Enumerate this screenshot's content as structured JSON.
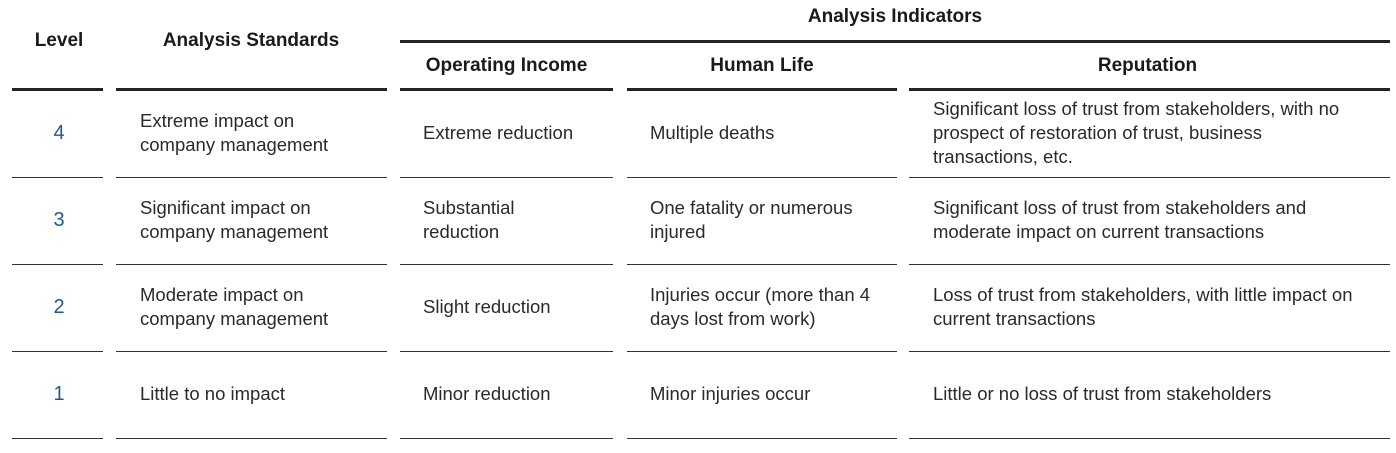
{
  "table": {
    "headers": {
      "level": "Level",
      "standards": "Analysis Standards",
      "indicators": "Analysis Indicators",
      "operating_income": "Operating Income",
      "human_life": "Human Life",
      "reputation": "Reputation"
    },
    "rows": [
      {
        "level": "4",
        "standard": "Extreme impact on company management",
        "operating_income": "Extreme reduction",
        "human_life": "Multiple deaths",
        "reputation": "Significant loss of trust from stakeholders, with no prospect of restoration of trust, business transactions, etc."
      },
      {
        "level": "3",
        "standard": "Significant impact on company management",
        "operating_income": "Substantial reduction",
        "human_life": "One fatality or numerous injured",
        "reputation": "Significant loss of trust from stakeholders and moderate impact on current transactions"
      },
      {
        "level": "2",
        "standard": "Moderate impact on company management",
        "operating_income": "Slight reduction",
        "human_life": "Injuries occur (more than 4 days lost from work)",
        "reputation": "Loss of trust from stakeholders, with little impact on current transactions"
      },
      {
        "level": "1",
        "standard": "Little to no impact",
        "operating_income": "Minor reduction",
        "human_life": "Minor injuries occur",
        "reputation": "Little or no loss of trust from stakeholders"
      }
    ],
    "colors": {
      "level_number": "#1f5b92",
      "rule": "#222222"
    }
  }
}
